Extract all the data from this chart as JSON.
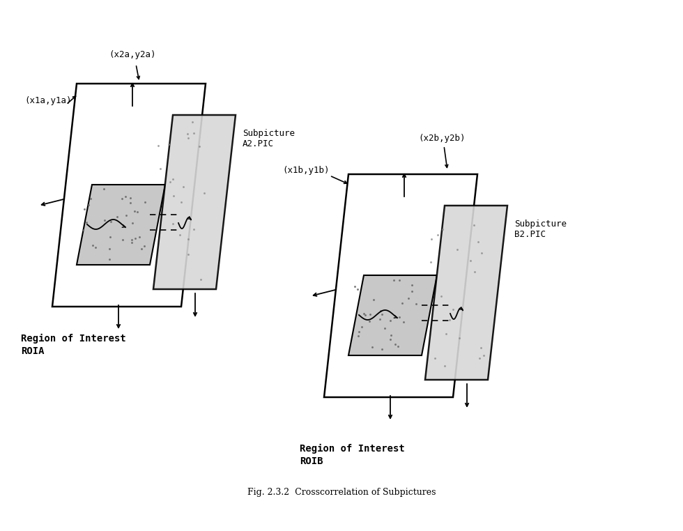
{
  "title": "Fig. 2.3.2  Crosscorrelation of Subpictures",
  "bg_color": "#ffffff",
  "text_color": "#000000",
  "label_a_corner1": "(x1a,y1a)",
  "label_a_corner2": "(x2a,y2a)",
  "label_b_corner1": "(x1b,y1b)",
  "label_b_corner2": "(x2b,y2b)",
  "label_subpic_a": "Subpicture\nA2.PIC",
  "label_subpic_b": "Subpicture\nB2.PIC",
  "label_roi_a1": "Region of Interest",
  "label_roi_a2": "ROIA",
  "label_roi_b1": "Region of Interest",
  "label_roi_b2": "ROIB",
  "font_size_labels": 9,
  "font_size_title": 9,
  "font_size_corner": 9
}
